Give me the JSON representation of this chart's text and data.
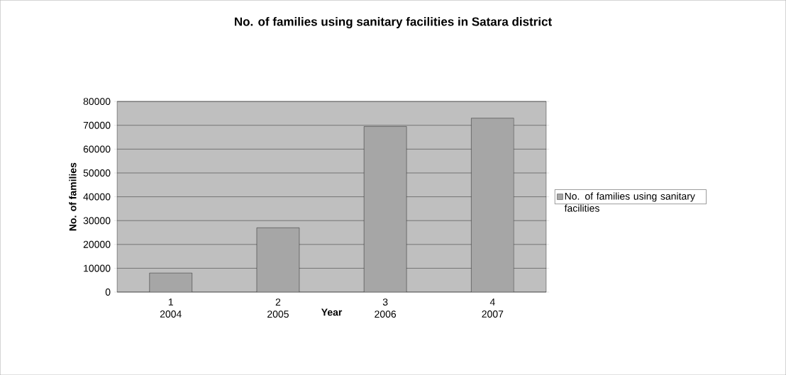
{
  "chart_data": {
    "type": "bar",
    "title": "No. of families using sanitary facilities in Satara district",
    "xlabel": "Year",
    "ylabel": "No. of families",
    "categories": [
      "1 2004",
      "2 2005",
      "3 2006",
      "4 2007"
    ],
    "series": [
      {
        "name": "No. of families using sanitary facilities",
        "color": "#a6a6a6",
        "values": [
          8000,
          27000,
          69500,
          73000
        ]
      }
    ],
    "ylim": [
      0,
      80000
    ],
    "yticks": [
      0,
      10000,
      20000,
      30000,
      40000,
      50000,
      60000,
      70000,
      80000
    ],
    "grid": "y",
    "legend": "right"
  }
}
